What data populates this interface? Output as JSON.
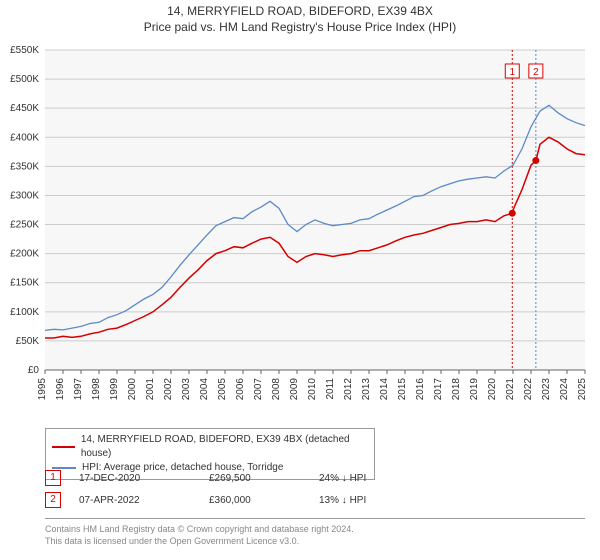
{
  "title": "14, MERRYFIELD ROAD, BIDEFORD, EX39 4BX",
  "subtitle": "Price paid vs. HM Land Registry's House Price Index (HPI)",
  "chart": {
    "type": "line",
    "background_color": "#f7f7f7",
    "grid_color": "#cccccc",
    "axis_color": "#666666",
    "axis_label_fontsize": 10,
    "xlim": [
      1995,
      2025
    ],
    "ylim": [
      0,
      550000
    ],
    "ytick_step": 50000,
    "ytick_prefix": "£",
    "ytick_suffix": "K",
    "ytick_divisor": 1000,
    "xtick_step": 1,
    "xtick_rotate": -90,
    "series": [
      {
        "id": "price_paid",
        "color": "#d40000",
        "width": 1.5,
        "data": [
          [
            1995,
            55000
          ],
          [
            1995.5,
            55000
          ],
          [
            1996,
            58000
          ],
          [
            1996.5,
            56000
          ],
          [
            1997,
            58000
          ],
          [
            1997.5,
            62000
          ],
          [
            1998,
            65000
          ],
          [
            1998.5,
            70000
          ],
          [
            1999,
            72000
          ],
          [
            1999.5,
            78000
          ],
          [
            2000,
            85000
          ],
          [
            2000.5,
            92000
          ],
          [
            2001,
            100000
          ],
          [
            2001.5,
            112000
          ],
          [
            2002,
            125000
          ],
          [
            2002.5,
            142000
          ],
          [
            2003,
            158000
          ],
          [
            2003.5,
            172000
          ],
          [
            2004,
            188000
          ],
          [
            2004.5,
            200000
          ],
          [
            2005,
            205000
          ],
          [
            2005.5,
            212000
          ],
          [
            2006,
            210000
          ],
          [
            2006.5,
            218000
          ],
          [
            2007,
            225000
          ],
          [
            2007.5,
            228000
          ],
          [
            2008,
            218000
          ],
          [
            2008.5,
            195000
          ],
          [
            2009,
            185000
          ],
          [
            2009.5,
            195000
          ],
          [
            2010,
            200000
          ],
          [
            2010.5,
            198000
          ],
          [
            2011,
            195000
          ],
          [
            2011.5,
            198000
          ],
          [
            2012,
            200000
          ],
          [
            2012.5,
            205000
          ],
          [
            2013,
            205000
          ],
          [
            2013.5,
            210000
          ],
          [
            2014,
            215000
          ],
          [
            2014.5,
            222000
          ],
          [
            2015,
            228000
          ],
          [
            2015.5,
            232000
          ],
          [
            2016,
            235000
          ],
          [
            2016.5,
            240000
          ],
          [
            2017,
            245000
          ],
          [
            2017.5,
            250000
          ],
          [
            2018,
            252000
          ],
          [
            2018.5,
            255000
          ],
          [
            2019,
            255000
          ],
          [
            2019.5,
            258000
          ],
          [
            2020,
            255000
          ],
          [
            2020.5,
            265000
          ],
          [
            2020.96,
            269500
          ],
          [
            2021,
            275000
          ],
          [
            2021.5,
            310000
          ],
          [
            2022,
            352000
          ],
          [
            2022.27,
            360000
          ],
          [
            2022.5,
            388000
          ],
          [
            2023,
            400000
          ],
          [
            2023.5,
            392000
          ],
          [
            2024,
            380000
          ],
          [
            2024.5,
            372000
          ],
          [
            2025,
            370000
          ]
        ]
      },
      {
        "id": "hpi",
        "color": "#5b8ac6",
        "width": 1.3,
        "data": [
          [
            1995,
            68000
          ],
          [
            1995.5,
            70000
          ],
          [
            1996,
            69000
          ],
          [
            1996.5,
            72000
          ],
          [
            1997,
            75000
          ],
          [
            1997.5,
            80000
          ],
          [
            1998,
            82000
          ],
          [
            1998.5,
            90000
          ],
          [
            1999,
            95000
          ],
          [
            1999.5,
            102000
          ],
          [
            2000,
            112000
          ],
          [
            2000.5,
            122000
          ],
          [
            2001,
            130000
          ],
          [
            2001.5,
            142000
          ],
          [
            2002,
            160000
          ],
          [
            2002.5,
            180000
          ],
          [
            2003,
            198000
          ],
          [
            2003.5,
            215000
          ],
          [
            2004,
            232000
          ],
          [
            2004.5,
            248000
          ],
          [
            2005,
            255000
          ],
          [
            2005.5,
            262000
          ],
          [
            2006,
            260000
          ],
          [
            2006.5,
            272000
          ],
          [
            2007,
            280000
          ],
          [
            2007.5,
            290000
          ],
          [
            2008,
            278000
          ],
          [
            2008.5,
            250000
          ],
          [
            2009,
            238000
          ],
          [
            2009.5,
            250000
          ],
          [
            2010,
            258000
          ],
          [
            2010.5,
            252000
          ],
          [
            2011,
            248000
          ],
          [
            2011.5,
            250000
          ],
          [
            2012,
            252000
          ],
          [
            2012.5,
            258000
          ],
          [
            2013,
            260000
          ],
          [
            2013.5,
            268000
          ],
          [
            2014,
            275000
          ],
          [
            2014.5,
            282000
          ],
          [
            2015,
            290000
          ],
          [
            2015.5,
            298000
          ],
          [
            2016,
            300000
          ],
          [
            2016.5,
            308000
          ],
          [
            2017,
            315000
          ],
          [
            2017.5,
            320000
          ],
          [
            2018,
            325000
          ],
          [
            2018.5,
            328000
          ],
          [
            2019,
            330000
          ],
          [
            2019.5,
            332000
          ],
          [
            2020,
            330000
          ],
          [
            2020.5,
            342000
          ],
          [
            2021,
            352000
          ],
          [
            2021.5,
            380000
          ],
          [
            2022,
            418000
          ],
          [
            2022.5,
            445000
          ],
          [
            2023,
            455000
          ],
          [
            2023.5,
            442000
          ],
          [
            2024,
            432000
          ],
          [
            2024.5,
            425000
          ],
          [
            2025,
            420000
          ]
        ]
      }
    ],
    "markers": [
      {
        "label": "1",
        "x": 2020.96,
        "y": 269500,
        "vline": true,
        "line_color": "#d40000"
      },
      {
        "label": "2",
        "x": 2022.27,
        "y": 360000,
        "vline": true,
        "line_color": "#5b8ac6"
      }
    ]
  },
  "legend": [
    {
      "color": "#d40000",
      "label": "14, MERRYFIELD ROAD, BIDEFORD, EX39 4BX (detached house)"
    },
    {
      "color": "#5b8ac6",
      "label": "HPI: Average price, detached house, Torridge"
    }
  ],
  "events": [
    {
      "num": "1",
      "date": "17-DEC-2020",
      "price": "£269,500",
      "delta": "24% ↓ HPI"
    },
    {
      "num": "2",
      "date": "07-APR-2022",
      "price": "£360,000",
      "delta": "13% ↓ HPI"
    }
  ],
  "footer_line1": "Contains HM Land Registry data © Crown copyright and database right 2024.",
  "footer_line2": "This data is licensed under the Open Government Licence v3.0."
}
